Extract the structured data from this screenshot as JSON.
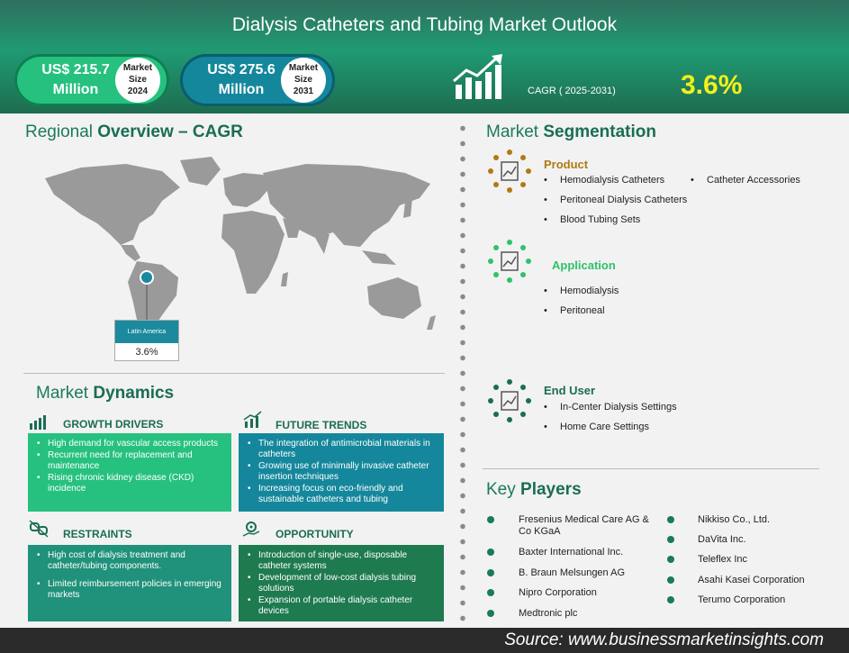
{
  "header": {
    "title": "Dialysis Catheters and Tubing Market Outlook",
    "stat1": {
      "value_line1": "US$ 215.7",
      "value_line2": "Million",
      "badge_line1": "Market",
      "badge_line2": "Size",
      "badge_line3": "2024"
    },
    "stat2": {
      "value_line1": "US$ 275.6",
      "value_line2": "Million",
      "badge_line1": "Market",
      "badge_line2": "Size",
      "badge_line3": "2031"
    },
    "cagr_label": "CAGR ( 2025-2031)",
    "cagr_value": "3.6%"
  },
  "regional": {
    "title_a": "Regional ",
    "title_b": "Overview – CAGR",
    "region_name": "Latin America",
    "region_cagr": "3.6%"
  },
  "dynamics": {
    "title_a": "Market ",
    "title_b": "Dynamics",
    "growth_drivers": {
      "heading": "GROWTH DRIVERS",
      "items": [
        "High demand for vascular access products",
        "Recurrent need for replacement and maintenance",
        "Rising chronic kidney disease (CKD) incidence"
      ]
    },
    "future_trends": {
      "heading": "FUTURE TRENDS",
      "items": [
        "The integration of antimicrobial materials in catheters",
        "Growing use of minimally invasive catheter insertion techniques",
        "Increasing focus on eco-friendly and sustainable catheters and tubing"
      ]
    },
    "restraints": {
      "heading": "RESTRAINTS",
      "items": [
        "High cost of dialysis treatment and catheter/tubing components.",
        "Limited reimbursement policies in emerging markets"
      ]
    },
    "opportunity": {
      "heading": "OPPORTUNITY",
      "items": [
        "Introduction of single-use, disposable catheter systems",
        "Development of low-cost dialysis tubing solutions",
        "Expansion of portable dialysis catheter devices"
      ]
    }
  },
  "segmentation": {
    "title_a": "Market ",
    "title_b": "Segmentation",
    "product": {
      "heading": "Product",
      "items": [
        "Hemodialysis Catheters",
        "Catheter Accessories",
        "Peritoneal Dialysis Catheters",
        "Blood Tubing Sets"
      ]
    },
    "application": {
      "heading": "Application",
      "items": [
        "Hemodialysis",
        "Peritoneal"
      ]
    },
    "end_user": {
      "heading": "End User",
      "items": [
        "In-Center Dialysis Settings",
        "Home Care Settings"
      ]
    }
  },
  "key_players": {
    "title_a": "Key ",
    "title_b": "Players",
    "left": [
      "Fresenius Medical Care AG & Co KGaA",
      "Baxter International Inc.",
      "B. Braun Melsungen AG",
      "Nipro Corporation",
      "Medtronic plc"
    ],
    "right": [
      "Nikkiso Co., Ltd.",
      "DaVita Inc.",
      "Teleflex Inc",
      "Asahi Kasei Corporation",
      "Terumo Corporation"
    ]
  },
  "footer": {
    "source": "Source:  www.businessmarketinsights.com"
  },
  "colors": {
    "green": "#26c17f",
    "teal": "#15879c",
    "dark_green": "#1a6d55",
    "cagr": "#f4f01c",
    "product": "#b07a12",
    "application": "#2fc26b",
    "end_user": "#1a6d55"
  }
}
